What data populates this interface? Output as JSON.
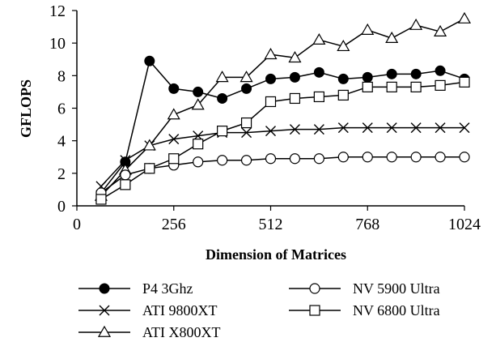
{
  "chart_data": {
    "type": "line",
    "title": "",
    "xlabel": "Dimension of Matrices",
    "ylabel": "GFLOPS",
    "xlim": [
      0,
      1024
    ],
    "ylim": [
      0,
      12
    ],
    "x_ticks": [
      0,
      256,
      512,
      768,
      1024
    ],
    "y_ticks": [
      0,
      2,
      4,
      6,
      8,
      10,
      12
    ],
    "grid": false,
    "legend_position": "bottom",
    "series": [
      {
        "name": "P4 3Ghz",
        "marker": "filled-circle",
        "x": [
          64,
          128,
          192,
          256,
          320,
          384,
          448,
          512,
          576,
          640,
          704,
          768,
          832,
          896,
          960,
          1024
        ],
        "y": [
          0.8,
          2.7,
          8.9,
          7.2,
          7.0,
          6.6,
          7.2,
          7.8,
          7.9,
          8.2,
          7.8,
          7.9,
          8.1,
          8.1,
          8.3,
          7.8
        ]
      },
      {
        "name": "ATI 9800XT",
        "marker": "x",
        "x": [
          64,
          128,
          192,
          256,
          320,
          384,
          448,
          512,
          576,
          640,
          704,
          768,
          832,
          896,
          960,
          1024
        ],
        "y": [
          1.2,
          2.8,
          3.7,
          4.1,
          4.3,
          4.5,
          4.5,
          4.6,
          4.7,
          4.7,
          4.8,
          4.8,
          4.8,
          4.8,
          4.8,
          4.8
        ]
      },
      {
        "name": "ATI X800XT",
        "marker": "open-triangle",
        "x": [
          64,
          128,
          192,
          256,
          320,
          384,
          448,
          512,
          576,
          640,
          704,
          768,
          832,
          896,
          960,
          1024
        ],
        "y": [
          0.6,
          2.2,
          3.7,
          5.6,
          6.2,
          7.9,
          7.9,
          9.3,
          9.1,
          10.2,
          9.8,
          10.8,
          10.3,
          11.1,
          10.7,
          11.5
        ]
      },
      {
        "name": "NV 5900 Ultra",
        "marker": "open-circle",
        "x": [
          64,
          128,
          192,
          256,
          320,
          384,
          448,
          512,
          576,
          640,
          704,
          768,
          832,
          896,
          960,
          1024
        ],
        "y": [
          0.8,
          1.9,
          2.3,
          2.5,
          2.7,
          2.8,
          2.8,
          2.9,
          2.9,
          2.9,
          3.0,
          3.0,
          3.0,
          3.0,
          3.0,
          3.0
        ]
      },
      {
        "name": "NV 6800 Ultra",
        "marker": "open-square",
        "x": [
          64,
          128,
          192,
          256,
          320,
          384,
          448,
          512,
          576,
          640,
          704,
          768,
          832,
          896,
          960,
          1024
        ],
        "y": [
          0.4,
          1.3,
          2.3,
          2.9,
          3.8,
          4.6,
          5.1,
          6.4,
          6.6,
          6.7,
          6.8,
          7.3,
          7.3,
          7.3,
          7.4,
          7.6
        ]
      }
    ]
  },
  "colors": {
    "line": "#000000",
    "background": "#ffffff",
    "open_marker_fill": "#ffffff"
  }
}
